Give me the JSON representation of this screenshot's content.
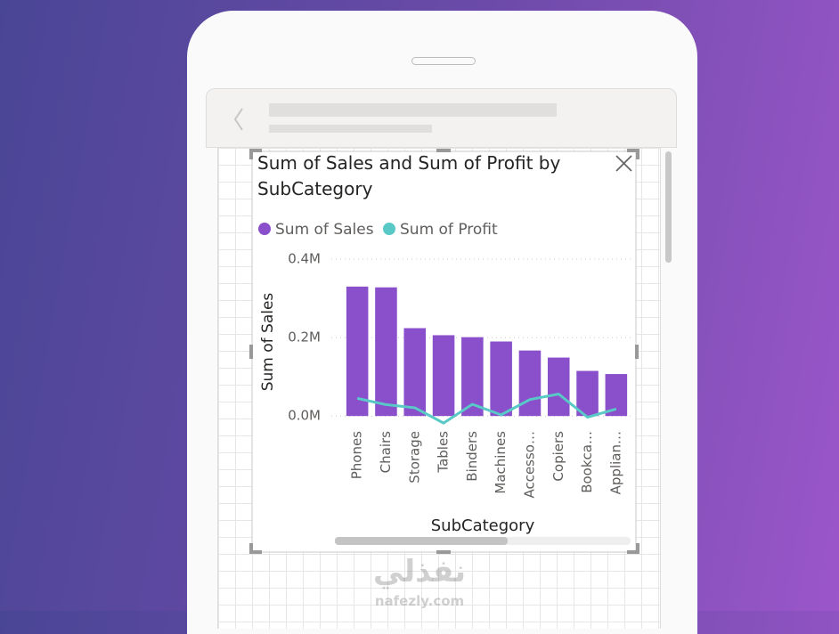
{
  "chart_data": {
    "type": "combo",
    "title": "Sum of Sales and Sum of Profit by SubCategory",
    "x_label": "SubCategory",
    "y_label": "Sum of Sales",
    "categories": [
      "Phones",
      "Chairs",
      "Storage",
      "Tables",
      "Binders",
      "Machines",
      "Accesso…",
      "Copiers",
      "Bookca…",
      "Applian…"
    ],
    "series": [
      {
        "name": "Sum of Sales",
        "type": "bar",
        "color": "#8a4fcb",
        "values": [
          330000,
          328000,
          224000,
          206000,
          201000,
          190000,
          167000,
          149000,
          115000,
          107000
        ]
      },
      {
        "name": "Sum of Profit",
        "type": "line",
        "color": "#58c9c6",
        "values": [
          45000,
          29000,
          21000,
          -18000,
          30000,
          3000,
          42000,
          56000,
          -3000,
          18000
        ]
      }
    ],
    "ylim": [
      -20000,
      400000
    ],
    "yticks": [
      {
        "value": 0,
        "label": "0.0M"
      },
      {
        "value": 200000,
        "label": "0.2M"
      },
      {
        "value": 400000,
        "label": "0.4M"
      }
    ],
    "grid": true
  },
  "watermark": {
    "arabic": "نفذلي",
    "latin": "nafezly.com"
  }
}
